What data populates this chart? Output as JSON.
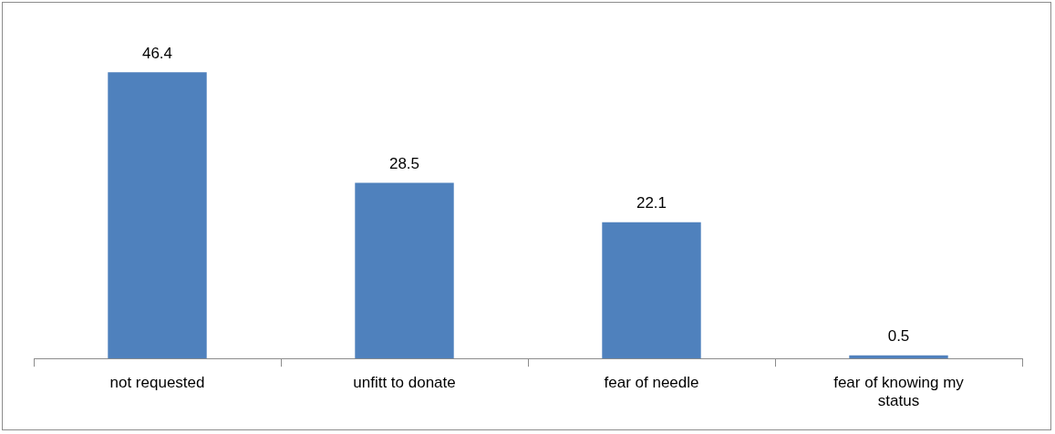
{
  "chart_data": {
    "type": "bar",
    "categories": [
      "not requested",
      "unfitt to donate",
      "fear of needle",
      "fear of knowing my status"
    ],
    "values": [
      46.4,
      28.5,
      22.1,
      0.5
    ],
    "color": "#4f81bd",
    "data_labels": true
  }
}
